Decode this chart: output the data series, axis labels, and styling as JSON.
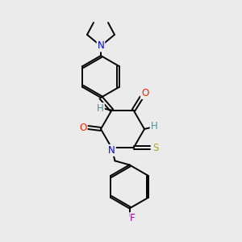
{
  "background_color": "#ebebeb",
  "bond_color": "#000000",
  "atom_colors": {
    "N": "#0000ff",
    "O": "#ff2200",
    "S": "#aaaa00",
    "F": "#aa00aa",
    "H_teal": "#4a9090",
    "C": "#000000"
  },
  "figsize": [
    3.0,
    3.0
  ],
  "dpi": 100
}
